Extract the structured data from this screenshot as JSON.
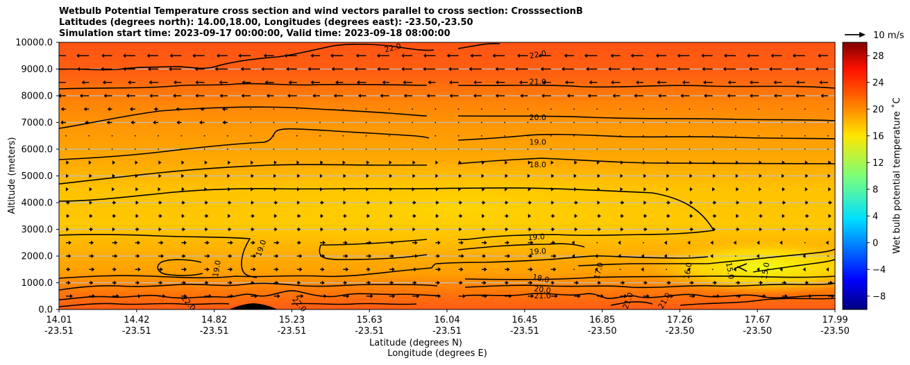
{
  "chart_data": {
    "type": "heatmap",
    "title_lines": [
      "Wetbulb Potential Temperature cross section and wind vectors parallel to cross section: CrosssectionB",
      "Latitudes (degrees north): 14.00,18.00, Longitudes (degrees east): -23.50,-23.50",
      "Simulation start time: 2023-09-17 00:00:00, Valid time: 2023-09-18 08:00:00"
    ],
    "ylabel": "Altitude (meters)",
    "xlabel_lat": "Latitude (degrees N)",
    "xlabel_lon": "Longitude (degrees E)",
    "ylim": [
      0,
      10000
    ],
    "y_ticks": [
      "0.0",
      "1000.0",
      "2000.0",
      "3000.0",
      "4000.0",
      "5000.0",
      "6000.0",
      "7000.0",
      "8000.0",
      "9000.0",
      "10000.0"
    ],
    "x_ticks": [
      {
        "lat": "14.01",
        "lon": "-23.51"
      },
      {
        "lat": "14.42",
        "lon": "-23.51"
      },
      {
        "lat": "14.82",
        "lon": "-23.51"
      },
      {
        "lat": "15.23",
        "lon": "-23.51"
      },
      {
        "lat": "15.63",
        "lon": "-23.51"
      },
      {
        "lat": "16.04",
        "lon": "-23.51"
      },
      {
        "lat": "16.45",
        "lon": "-23.51"
      },
      {
        "lat": "16.85",
        "lon": "-23.50"
      },
      {
        "lat": "17.26",
        "lon": "-23.50"
      },
      {
        "lat": "17.67",
        "lon": "-23.50"
      },
      {
        "lat": "17.99",
        "lon": "-23.50"
      }
    ],
    "colorbar": {
      "label": "Wet bulb potential temperature ˚C",
      "range": [
        -10,
        30
      ],
      "ticks": [
        "−8",
        "−4",
        "0",
        "4",
        "8",
        "12",
        "16",
        "20",
        "24",
        "28"
      ]
    },
    "quiver_key": "10 m/s",
    "contour_labels": [
      {
        "text": "22.0",
        "frac": 0.43,
        "alt": 9800,
        "rot": -14
      },
      {
        "text": "22.0",
        "frac": 0.617,
        "alt": 9550,
        "rot": -10
      },
      {
        "text": "21.0",
        "frac": 0.617,
        "alt": 8530,
        "rot": 0
      },
      {
        "text": "20.0",
        "frac": 0.617,
        "alt": 7200,
        "rot": 0
      },
      {
        "text": "19.0",
        "frac": 0.617,
        "alt": 6270,
        "rot": 0
      },
      {
        "text": "18.0",
        "frac": 0.617,
        "alt": 5430,
        "rot": 0
      },
      {
        "text": "19.0",
        "frac": 0.615,
        "alt": 2720,
        "rot": -4
      },
      {
        "text": "19.0",
        "frac": 0.617,
        "alt": 2180,
        "rot": -4
      },
      {
        "text": "19.0",
        "frac": 0.26,
        "alt": 2300,
        "rot": -70
      },
      {
        "text": "19.0",
        "frac": 0.203,
        "alt": 1530,
        "rot": -80
      },
      {
        "text": "18.0",
        "frac": 0.621,
        "alt": 1170,
        "rot": 12
      },
      {
        "text": "20.0",
        "frac": 0.623,
        "alt": 750,
        "rot": 8
      },
      {
        "text": "21.0",
        "frac": 0.623,
        "alt": 520,
        "rot": 0
      },
      {
        "text": "22.0",
        "frac": 0.167,
        "alt": 250,
        "rot": 50
      },
      {
        "text": "22.0",
        "frac": 0.31,
        "alt": 200,
        "rot": 50
      },
      {
        "text": "21.0",
        "frac": 0.733,
        "alt": 330,
        "rot": -70
      },
      {
        "text": "21.0",
        "frac": 0.78,
        "alt": 330,
        "rot": -60
      },
      {
        "text": "17.0",
        "frac": 0.695,
        "alt": 1450,
        "rot": -75
      },
      {
        "text": "16.0",
        "frac": 0.81,
        "alt": 1450,
        "rot": -80
      },
      {
        "text": "15.0",
        "frac": 0.865,
        "alt": 1450,
        "rot": 80
      },
      {
        "text": "15.0",
        "frac": 0.91,
        "alt": 1450,
        "rot": -80
      }
    ]
  }
}
